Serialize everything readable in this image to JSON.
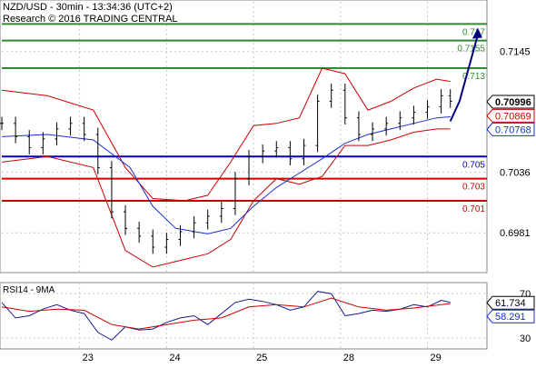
{
  "header": {
    "line1": "NZD/USD - 30min - 13:34:36 (UTC+2)",
    "line2": "Research © 2016 TRADING CENTRAL"
  },
  "colors": {
    "price": "#000000",
    "bollinger": "#cc0000",
    "moving_average": "#1a2fd0",
    "resistance": "#2e8b2e",
    "pivot": "#0000cc",
    "support": "#cc0000",
    "forecast": "#000080",
    "rsi": "#1a1a8c",
    "rsi_ma": "#cc0000",
    "grid": "#c8c8c8"
  },
  "chart_data": [
    {
      "type": "line",
      "title": "NZD/USD - 30min",
      "x_tick_labels": [
        "23",
        "24",
        "25",
        "28",
        "29"
      ],
      "y_tick_labels": [
        "0.7145",
        "0.7036",
        "0.6981"
      ],
      "ylim": [
        0.6945,
        0.719
      ],
      "grid": true,
      "series": [
        {
          "style": "ohlc",
          "x": [
            0,
            3,
            6,
            9,
            12,
            15,
            18,
            21,
            24,
            27,
            30,
            33,
            36,
            39,
            42,
            45,
            48,
            51,
            54,
            57,
            60,
            63,
            66,
            69,
            72,
            75,
            78,
            81,
            84,
            87,
            90,
            93,
            96,
            98
          ],
          "close": [
            0.708,
            0.7068,
            0.7058,
            0.7066,
            0.7075,
            0.708,
            0.707,
            0.704,
            0.7,
            0.6985,
            0.6978,
            0.6968,
            0.6975,
            0.6982,
            0.699,
            0.6996,
            0.7003,
            0.703,
            0.705,
            0.7055,
            0.7058,
            0.7048,
            0.706,
            0.71,
            0.711,
            0.7085,
            0.707,
            0.7075,
            0.708,
            0.7085,
            0.709,
            0.7095,
            0.7105,
            0.71
          ]
        },
        {
          "name": "Bollinger upper",
          "x": [
            0,
            10,
            20,
            27,
            33,
            40,
            45,
            50,
            55,
            60,
            65,
            70,
            75,
            80,
            85,
            90,
            95,
            98
          ],
          "values": [
            0.711,
            0.7105,
            0.7092,
            0.704,
            0.7012,
            0.701,
            0.7015,
            0.7045,
            0.7078,
            0.708,
            0.7085,
            0.713,
            0.7125,
            0.7092,
            0.71,
            0.7112,
            0.712,
            0.7118
          ]
        },
        {
          "name": "Bollinger lower",
          "x": [
            0,
            10,
            20,
            27,
            33,
            40,
            45,
            50,
            55,
            60,
            65,
            70,
            75,
            80,
            85,
            90,
            95,
            98
          ],
          "values": [
            0.7045,
            0.705,
            0.704,
            0.6965,
            0.695,
            0.6957,
            0.6962,
            0.6975,
            0.701,
            0.703,
            0.7025,
            0.7032,
            0.706,
            0.706,
            0.7065,
            0.7072,
            0.7075,
            0.7075
          ]
        },
        {
          "name": "Moving average",
          "x": [
            0,
            10,
            20,
            28,
            33,
            38,
            45,
            50,
            55,
            60,
            65,
            70,
            75,
            80,
            85,
            90,
            95,
            98
          ],
          "values": [
            0.7068,
            0.707,
            0.7065,
            0.704,
            0.7005,
            0.6985,
            0.698,
            0.6985,
            0.7005,
            0.7022,
            0.7035,
            0.7048,
            0.7062,
            0.707,
            0.7075,
            0.708,
            0.7085,
            0.7086
          ]
        },
        {
          "name": "Forecast",
          "x": [
            98,
            100,
            104
          ],
          "values": [
            0.7082,
            0.71,
            0.716
          ]
        }
      ],
      "levels": [
        {
          "value": 0.717,
          "label": "0.717",
          "kind": "resistance"
        },
        {
          "value": 0.7155,
          "label": "0.7155",
          "kind": "resistance"
        },
        {
          "value": 0.713,
          "label": "0.713",
          "kind": "resistance"
        },
        {
          "value": 0.705,
          "label": "0.705",
          "kind": "pivot"
        },
        {
          "value": 0.703,
          "label": "0.703",
          "kind": "support"
        },
        {
          "value": 0.701,
          "label": "0.701",
          "kind": "support"
        }
      ],
      "price_tags": [
        {
          "value": 0.70996,
          "label": "0.70996",
          "style": "current"
        },
        {
          "value": 0.70869,
          "label": "0.70869",
          "style": "upper"
        },
        {
          "value": 0.70768,
          "label": "0.70768",
          "style": "ma"
        }
      ]
    },
    {
      "type": "line",
      "title": "RSI14 - 9MA",
      "y_tick_labels": [
        "70",
        "30"
      ],
      "ylim": [
        20,
        80
      ],
      "grid": true,
      "series": [
        {
          "name": "RSI14",
          "x": [
            0,
            3,
            6,
            9,
            12,
            15,
            18,
            21,
            24,
            27,
            30,
            33,
            36,
            39,
            42,
            45,
            48,
            51,
            54,
            57,
            60,
            63,
            66,
            69,
            72,
            75,
            78,
            81,
            84,
            87,
            90,
            93,
            96,
            98
          ],
          "values": [
            62,
            48,
            50,
            56,
            60,
            55,
            52,
            35,
            28,
            40,
            37,
            38,
            44,
            48,
            50,
            42,
            52,
            62,
            65,
            63,
            60,
            55,
            58,
            72,
            70,
            50,
            52,
            55,
            54,
            56,
            60,
            58,
            64,
            62
          ]
        },
        {
          "name": "9MA",
          "x": [
            0,
            6,
            12,
            18,
            24,
            30,
            36,
            42,
            48,
            54,
            60,
            66,
            72,
            78,
            84,
            90,
            96,
            98
          ],
          "values": [
            58,
            54,
            56,
            55,
            42,
            38,
            42,
            46,
            48,
            58,
            60,
            58,
            66,
            58,
            55,
            57,
            60,
            61
          ]
        }
      ],
      "price_tags": [
        {
          "value": 61.734,
          "label": "61.734",
          "style": "rsi"
        },
        {
          "value": 58.291,
          "label": "58.291",
          "style": "ma"
        }
      ]
    }
  ]
}
